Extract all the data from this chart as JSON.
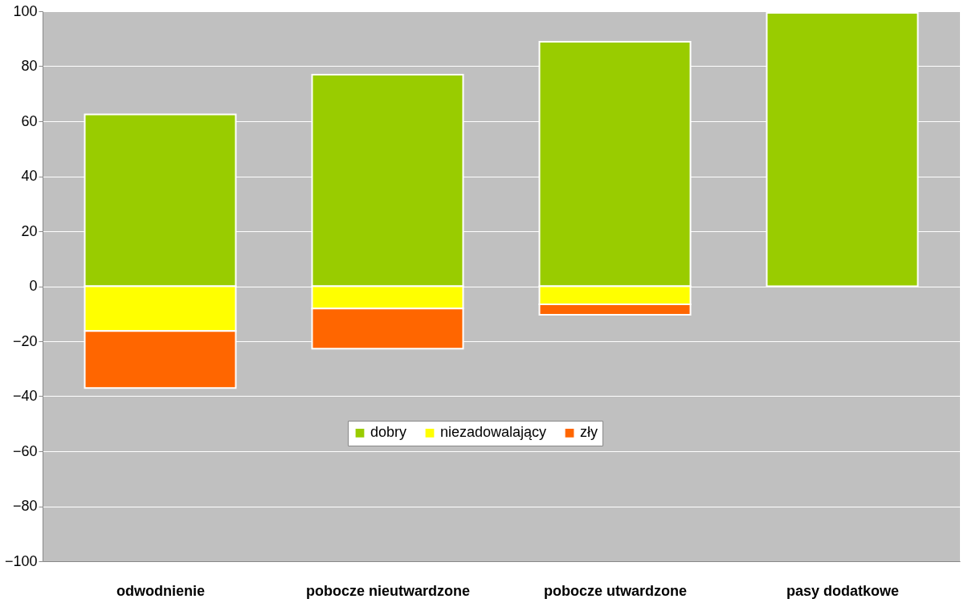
{
  "chart_data": {
    "type": "bar",
    "stacked": true,
    "categories": [
      "odwodnienie",
      "pobocze nieutwardzone",
      "pobocze utwardzone",
      "pasy dodatkowe"
    ],
    "series": [
      {
        "name": "dobry",
        "color": "#99cc00",
        "values": [
          62.5,
          76.9,
          88.9,
          99.4
        ]
      },
      {
        "name": "niezadowalający",
        "color": "#ffff00",
        "values": [
          -16.3,
          -8.1,
          -6.6,
          null
        ]
      },
      {
        "name": "zły",
        "color": "#ff6600",
        "values": [
          -20.7,
          -14.6,
          -3.8,
          null
        ]
      }
    ],
    "ylim": [
      -100,
      100
    ],
    "yticks": [
      -100,
      -80,
      -60,
      -40,
      -20,
      0,
      20,
      40,
      60,
      80,
      100
    ],
    "grid": "y",
    "legend": "bottom"
  }
}
